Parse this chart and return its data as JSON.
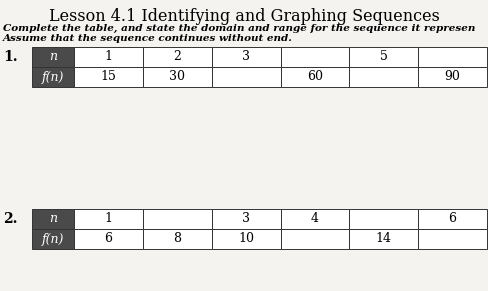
{
  "title": "Lesson 4.1 Identifying and Graphing Sequences",
  "subtitle1": "Complete the table, and state the domain and range for the sequence it represen",
  "subtitle2": "Assume that the sequence continues without end.",
  "bg_color": "#e8e4de",
  "table_area_bg": "#f0ede8",
  "header_color": "#4a4a4a",
  "table1": {
    "label": "1.",
    "row1_header": "n",
    "row2_header": "f(n)",
    "row1_values": [
      "1",
      "2",
      "3",
      "",
      "5",
      ""
    ],
    "row2_values": [
      "15",
      "30",
      "",
      "60",
      "",
      "90"
    ]
  },
  "table2": {
    "label": "2.",
    "row1_header": "n",
    "row2_header": "f(n)",
    "row1_values": [
      "1",
      "",
      "3",
      "4",
      "",
      "6"
    ],
    "row2_values": [
      "6",
      "8",
      "10",
      "",
      "14",
      ""
    ]
  },
  "title_fontsize": 11.5,
  "subtitle_fontsize": 7.5,
  "cell_fontsize": 9
}
